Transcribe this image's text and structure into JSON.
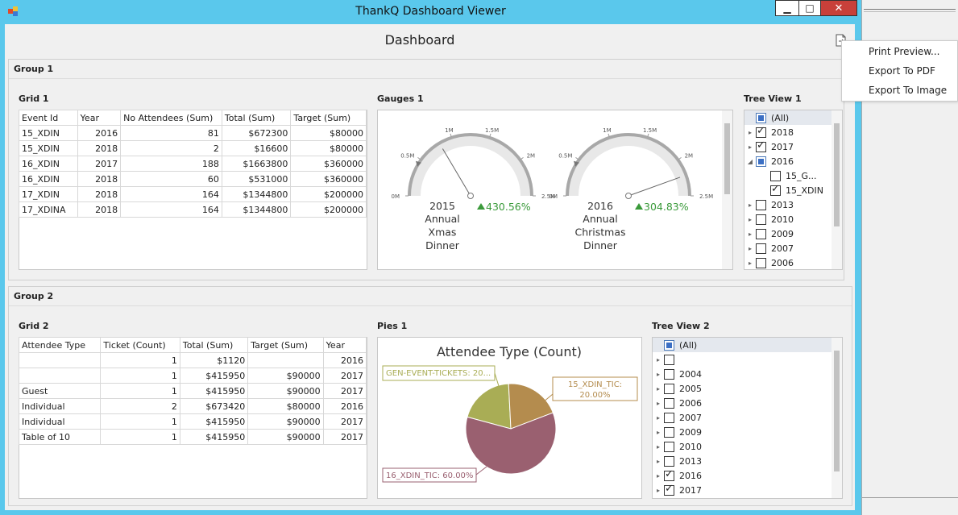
{
  "window": {
    "title": "ThankQ Dashboard Viewer",
    "min": "▁",
    "max": "□",
    "close": "✕"
  },
  "dashboard": {
    "title": "Dashboard"
  },
  "context_menu": {
    "items": [
      "Print Preview...",
      "Export To PDF",
      "Export To Image"
    ]
  },
  "group1": {
    "caption": "Group 1",
    "grid": {
      "caption": "Grid 1",
      "columns": [
        "Event Id",
        "Year",
        "No Attendees (Sum)",
        "Total (Sum)",
        "Target (Sum)"
      ],
      "rows": [
        [
          "15_XDIN",
          "2016",
          "81",
          "$672300",
          "$80000"
        ],
        [
          "15_XDIN",
          "2018",
          "2",
          "$16600",
          "$80000"
        ],
        [
          "16_XDIN",
          "2017",
          "188",
          "$1663800",
          "$360000"
        ],
        [
          "16_XDIN",
          "2018",
          "60",
          "$531000",
          "$360000"
        ],
        [
          "17_XDIN",
          "2018",
          "164",
          "$1344800",
          "$200000"
        ],
        [
          "17_XDINA",
          "2018",
          "164",
          "$1344800",
          "$200000"
        ]
      ]
    },
    "gauges": {
      "caption": "Gauges 1",
      "items": [
        {
          "scale_labels": [
            "0M",
            "0.5M",
            "1M",
            "1.5M",
            "2M",
            "2.5M"
          ],
          "year": "2015",
          "name_lines": [
            "Annual",
            "Xmas",
            "Dinner"
          ],
          "delta": "430.56%",
          "needle_value": 0.33
        },
        {
          "scale_labels": [
            "0M",
            "0.5M",
            "1M",
            "1.5M",
            "2M",
            "2.5M"
          ],
          "year": "2016",
          "name_lines": [
            "Annual",
            "Christmas",
            "Dinner"
          ],
          "delta": "304.83%",
          "needle_value": 0.89
        }
      ],
      "delta_color": "#3a9a3a"
    },
    "tree": {
      "caption": "Tree View 1",
      "items": [
        {
          "label": "(All)",
          "state": "indeterminate",
          "arrow": "",
          "indent": 0,
          "all": true
        },
        {
          "label": "2018",
          "state": "checked",
          "arrow": "▸",
          "indent": 0
        },
        {
          "label": "2017",
          "state": "checked",
          "arrow": "▸",
          "indent": 0
        },
        {
          "label": "2016",
          "state": "indeterminate",
          "arrow": "◢",
          "indent": 0
        },
        {
          "label": "15_G...",
          "state": "unchecked",
          "arrow": "",
          "indent": 1
        },
        {
          "label": "15_XDIN",
          "state": "checked",
          "arrow": "",
          "indent": 1
        },
        {
          "label": "2013",
          "state": "unchecked",
          "arrow": "▸",
          "indent": 0
        },
        {
          "label": "2010",
          "state": "unchecked",
          "arrow": "▸",
          "indent": 0
        },
        {
          "label": "2009",
          "state": "unchecked",
          "arrow": "▸",
          "indent": 0
        },
        {
          "label": "2007",
          "state": "unchecked",
          "arrow": "▸",
          "indent": 0
        },
        {
          "label": "2006",
          "state": "unchecked",
          "arrow": "▸",
          "indent": 0
        }
      ]
    }
  },
  "group2": {
    "caption": "Group 2",
    "grid": {
      "caption": "Grid 2",
      "columns": [
        "Attendee Type",
        "Ticket (Count)",
        "Total (Sum)",
        "Target (Sum)",
        "Year"
      ],
      "rows": [
        [
          "",
          "1",
          "$1120",
          "",
          "2016"
        ],
        [
          "",
          "1",
          "$415950",
          "$90000",
          "2017"
        ],
        [
          "Guest",
          "1",
          "$415950",
          "$90000",
          "2017"
        ],
        [
          "Individual",
          "2",
          "$673420",
          "$80000",
          "2016"
        ],
        [
          "Individual",
          "1",
          "$415950",
          "$90000",
          "2017"
        ],
        [
          "Table of 10",
          "1",
          "$415950",
          "$90000",
          "2017"
        ]
      ]
    },
    "pies": {
      "caption": "Pies 1"
    },
    "tree": {
      "caption": "Tree View 2",
      "items": [
        {
          "label": "(All)",
          "state": "indeterminate",
          "arrow": "",
          "indent": 0,
          "all": true
        },
        {
          "label": "",
          "state": "unchecked",
          "arrow": "▸",
          "indent": 0
        },
        {
          "label": "2004",
          "state": "unchecked",
          "arrow": "▸",
          "indent": 0
        },
        {
          "label": "2005",
          "state": "unchecked",
          "arrow": "▸",
          "indent": 0
        },
        {
          "label": "2006",
          "state": "unchecked",
          "arrow": "▸",
          "indent": 0
        },
        {
          "label": "2007",
          "state": "unchecked",
          "arrow": "▸",
          "indent": 0
        },
        {
          "label": "2009",
          "state": "unchecked",
          "arrow": "▸",
          "indent": 0
        },
        {
          "label": "2010",
          "state": "unchecked",
          "arrow": "▸",
          "indent": 0
        },
        {
          "label": "2013",
          "state": "unchecked",
          "arrow": "▸",
          "indent": 0
        },
        {
          "label": "2016",
          "state": "checked",
          "arrow": "▸",
          "indent": 0
        },
        {
          "label": "2017",
          "state": "checked",
          "arrow": "▸",
          "indent": 0
        }
      ]
    }
  },
  "chart_data": {
    "type": "pie",
    "title": "Attendee Type (Count)",
    "slices": [
      {
        "label": "GEN-EVENT-TICKETS: 20...",
        "value": 20,
        "color": "#a9ad55"
      },
      {
        "label": "15_XDIN_TIC: 20.00%",
        "value": 20,
        "color": "#b48c4e"
      },
      {
        "label": "16_XDIN_TIC: 60.00%",
        "value": 60,
        "color": "#9a6070"
      }
    ]
  },
  "colors": {
    "titlebar": "#5ac8ec",
    "close": "#c8403a",
    "gauge_arc": "#e8e8e8"
  }
}
